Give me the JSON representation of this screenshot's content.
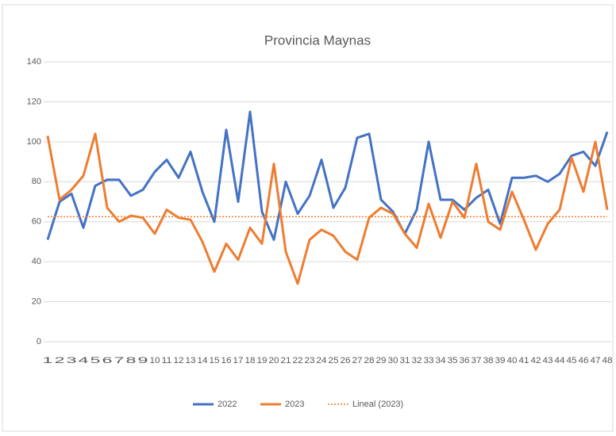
{
  "chart_data": {
    "type": "line",
    "title": "Provincia Maynas",
    "categories": [
      "1",
      "2",
      "3",
      "4",
      "5",
      "6",
      "7",
      "8",
      "9",
      "10",
      "11",
      "12",
      "13",
      "14",
      "15",
      "16",
      "17",
      "18",
      "19",
      "20",
      "21",
      "22",
      "23",
      "24",
      "25",
      "26",
      "27",
      "28",
      "29",
      "30",
      "31",
      "32",
      "33",
      "34",
      "35",
      "36",
      "37",
      "38",
      "39",
      "40",
      "41",
      "42",
      "43",
      "44",
      "45",
      "46",
      "47",
      "48"
    ],
    "series": [
      {
        "name": "2022",
        "color": "#4472c4",
        "line_style": "solid",
        "values": [
          51,
          70,
          74,
          57,
          78,
          81,
          81,
          73,
          76,
          85,
          91,
          82,
          95,
          75,
          60,
          106,
          70,
          115,
          65,
          51,
          80,
          64,
          73,
          91,
          67,
          77,
          102,
          104,
          71,
          65,
          54,
          66,
          100,
          71,
          71,
          66,
          72,
          76,
          59,
          82,
          82,
          83,
          80,
          84,
          93,
          95,
          88,
          105
        ]
      },
      {
        "name": "2023",
        "color": "#ed7d31",
        "line_style": "solid",
        "values": [
          103,
          71,
          76,
          83,
          104,
          67,
          60,
          63,
          62,
          54,
          66,
          62,
          61,
          50,
          35,
          49,
          41,
          57,
          49,
          89,
          45,
          29,
          51,
          56,
          53,
          45,
          41,
          62,
          67,
          64,
          54,
          47,
          69,
          52,
          70,
          62,
          89,
          60,
          56,
          75,
          61,
          46,
          59,
          66,
          92,
          75,
          100,
          66
        ]
      },
      {
        "name": "Lineal (2023)",
        "color": "#ed7d31",
        "line_style": "dotted",
        "values": [
          62.5,
          62.5,
          62.5,
          62.5,
          62.5,
          62.5,
          62.5,
          62.5,
          62.5,
          62.5,
          62.5,
          62.5,
          62.5,
          62.5,
          62.5,
          62.5,
          62.5,
          62.5,
          62.5,
          62.5,
          62.5,
          62.5,
          62.5,
          62.5,
          62.5,
          62.5,
          62.5,
          62.5,
          62.5,
          62.5,
          62.5,
          62.5,
          62.5,
          62.5,
          62.5,
          62.5,
          62.5,
          62.5,
          62.5,
          62.5,
          62.5,
          62.5,
          62.5,
          62.5,
          62.5,
          62.5,
          62.5,
          62.5
        ]
      }
    ],
    "ylim": [
      0,
      140
    ],
    "yticks": [
      0,
      20,
      40,
      60,
      80,
      100,
      120,
      140
    ],
    "grid": true,
    "legend": "bottom"
  }
}
